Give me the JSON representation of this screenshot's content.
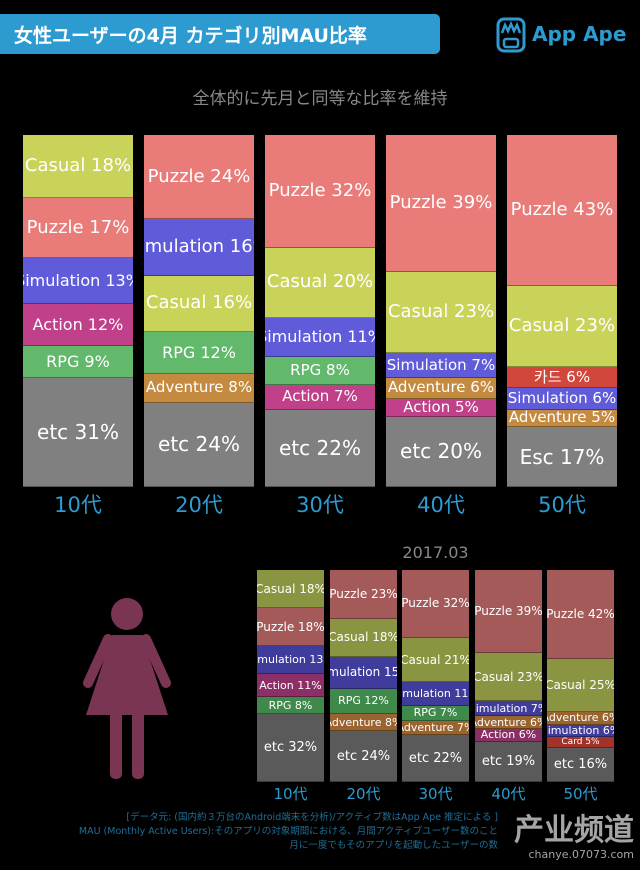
{
  "header": {
    "title": "女性ユーザーの4月 カテゴリ別MAU比率",
    "logo_text": "App Ape",
    "subtitle": "全体的に先月と同等な比率を維持"
  },
  "colors": {
    "accent": "#2e9bd0",
    "main": {
      "Casual": "#c9d35a",
      "Puzzle": "#e97b78",
      "Simulation": "#5f5bd9",
      "Action": "#c0408a",
      "RPG": "#62b96b",
      "Adventure": "#c48a40",
      "etc": "#808080",
      "Esc": "#808080",
      "카드": "#d1473c"
    },
    "prev": {
      "Casual": "#8b9440",
      "Puzzle": "#a55a5a",
      "Simulation": "#3f3c9c",
      "Action": "#8c2f66",
      "RPG": "#3f8a4a",
      "Adventure": "#9a6430",
      "etc": "#5a5a5a",
      "Card": "#a33328"
    }
  },
  "chart_data": [
    {
      "type": "bar",
      "stacked": true,
      "title": "",
      "categories": [
        "10代",
        "20代",
        "30代",
        "40代",
        "50代"
      ],
      "unit": "%",
      "stacks": [
        [
          {
            "name": "Casual",
            "value": 18
          },
          {
            "name": "Puzzle",
            "value": 17
          },
          {
            "name": "Simulation",
            "value": 13
          },
          {
            "name": "Action",
            "value": 12
          },
          {
            "name": "RPG",
            "value": 9
          },
          {
            "name": "etc",
            "value": 31
          }
        ],
        [
          {
            "name": "Puzzle",
            "value": 24
          },
          {
            "name": "Simulation",
            "value": 16
          },
          {
            "name": "Casual",
            "value": 16
          },
          {
            "name": "RPG",
            "value": 12
          },
          {
            "name": "Adventure",
            "value": 8
          },
          {
            "name": "etc",
            "value": 24
          }
        ],
        [
          {
            "name": "Puzzle",
            "value": 32
          },
          {
            "name": "Casual",
            "value": 20
          },
          {
            "name": "Simulation",
            "value": 11
          },
          {
            "name": "RPG",
            "value": 8
          },
          {
            "name": "Action",
            "value": 7
          },
          {
            "name": "etc",
            "value": 22
          }
        ],
        [
          {
            "name": "Puzzle",
            "value": 39
          },
          {
            "name": "Casual",
            "value": 23
          },
          {
            "name": "Simulation",
            "value": 7
          },
          {
            "name": "Adventure",
            "value": 6
          },
          {
            "name": "Action",
            "value": 5
          },
          {
            "name": "etc",
            "value": 20
          }
        ],
        [
          {
            "name": "Puzzle",
            "value": 43
          },
          {
            "name": "Casual",
            "value": 23
          },
          {
            "name": "카드",
            "value": 6
          },
          {
            "name": "Simulation",
            "value": 6
          },
          {
            "name": "Adventure",
            "value": 5
          },
          {
            "name": "Esc",
            "value": 17
          }
        ]
      ]
    },
    {
      "type": "bar",
      "stacked": true,
      "title": "2017.03",
      "categories": [
        "10代",
        "20代",
        "30代",
        "40代",
        "50代"
      ],
      "unit": "%",
      "stacks": [
        [
          {
            "name": "Casual",
            "value": 18
          },
          {
            "name": "Puzzle",
            "value": 18
          },
          {
            "name": "Simulation",
            "value": 13
          },
          {
            "name": "Action",
            "value": 11
          },
          {
            "name": "RPG",
            "value": 8
          },
          {
            "name": "etc",
            "value": 32
          }
        ],
        [
          {
            "name": "Puzzle",
            "value": 23
          },
          {
            "name": "Casual",
            "value": 18
          },
          {
            "name": "Simulation",
            "value": 15
          },
          {
            "name": "RPG",
            "value": 12
          },
          {
            "name": "Adventure",
            "value": 8
          },
          {
            "name": "etc",
            "value": 24
          }
        ],
        [
          {
            "name": "Puzzle",
            "value": 32
          },
          {
            "name": "Casual",
            "value": 21
          },
          {
            "name": "Simulation",
            "value": 11
          },
          {
            "name": "RPG",
            "value": 7
          },
          {
            "name": "Adventure",
            "value": 7
          },
          {
            "name": "etc",
            "value": 22
          }
        ],
        [
          {
            "name": "Puzzle",
            "value": 39
          },
          {
            "name": "Casual",
            "value": 23
          },
          {
            "name": "Simulation",
            "value": 7
          },
          {
            "name": "Adventure",
            "value": 6
          },
          {
            "name": "Action",
            "value": 6
          },
          {
            "name": "etc",
            "value": 19
          }
        ],
        [
          {
            "name": "Puzzle",
            "value": 42
          },
          {
            "name": "Casual",
            "value": 25
          },
          {
            "name": "Adventure",
            "value": 6
          },
          {
            "name": "Simulation",
            "value": 6
          },
          {
            "name": "Card",
            "value": 5
          },
          {
            "name": "etc",
            "value": 16
          }
        ]
      ]
    }
  ],
  "footer": {
    "line1": "[データ元: (国内約３万台のAndroid端末を分析)/アクティブ数はApp Ape 推定による ]",
    "line2": "MAU (Monthly Active Users):そのアプリの対象期間における、月間アクティブユーザー数のこと",
    "line3": "月に一度でもそのアプリを起動したユーザーの数"
  },
  "watermark": {
    "text": "产业频道",
    "url": "chanye.07073.com"
  }
}
